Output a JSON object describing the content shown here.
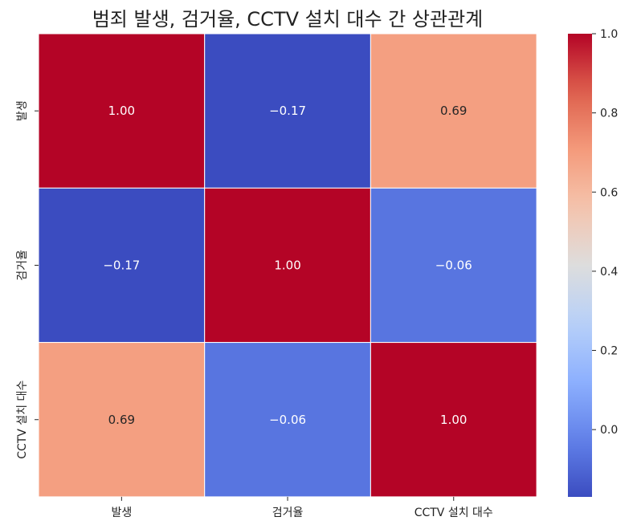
{
  "chart_data": {
    "type": "heatmap",
    "title": "범죄 발생, 검거율, CCTV 설치 대수 간 상관관계",
    "row_labels": [
      "발생",
      "검거율",
      "CCTV 설치 대수"
    ],
    "col_labels": [
      "발생",
      "검거율",
      "CCTV 설치 대수"
    ],
    "values": [
      [
        1.0,
        -0.17,
        0.69
      ],
      [
        -0.17,
        1.0,
        -0.06
      ],
      [
        0.69,
        -0.06,
        1.0
      ]
    ],
    "cell_labels": [
      [
        "1.00",
        "−0.17",
        "0.69"
      ],
      [
        "−0.17",
        "1.00",
        "−0.06"
      ],
      [
        "0.69",
        "−0.06",
        "1.00"
      ]
    ],
    "colormap": "coolwarm",
    "colorbar": {
      "range": [
        -0.17,
        1.0
      ],
      "ticks": [
        0.0,
        0.2,
        0.4,
        0.6,
        0.8,
        1.0
      ],
      "tick_labels": [
        "0.0",
        "0.2",
        "0.4",
        "0.6",
        "0.8",
        "1.0"
      ]
    },
    "colors": {
      "cool": "#3b4cc0",
      "neutral": "#dddddd",
      "warm": "#b40426"
    }
  }
}
